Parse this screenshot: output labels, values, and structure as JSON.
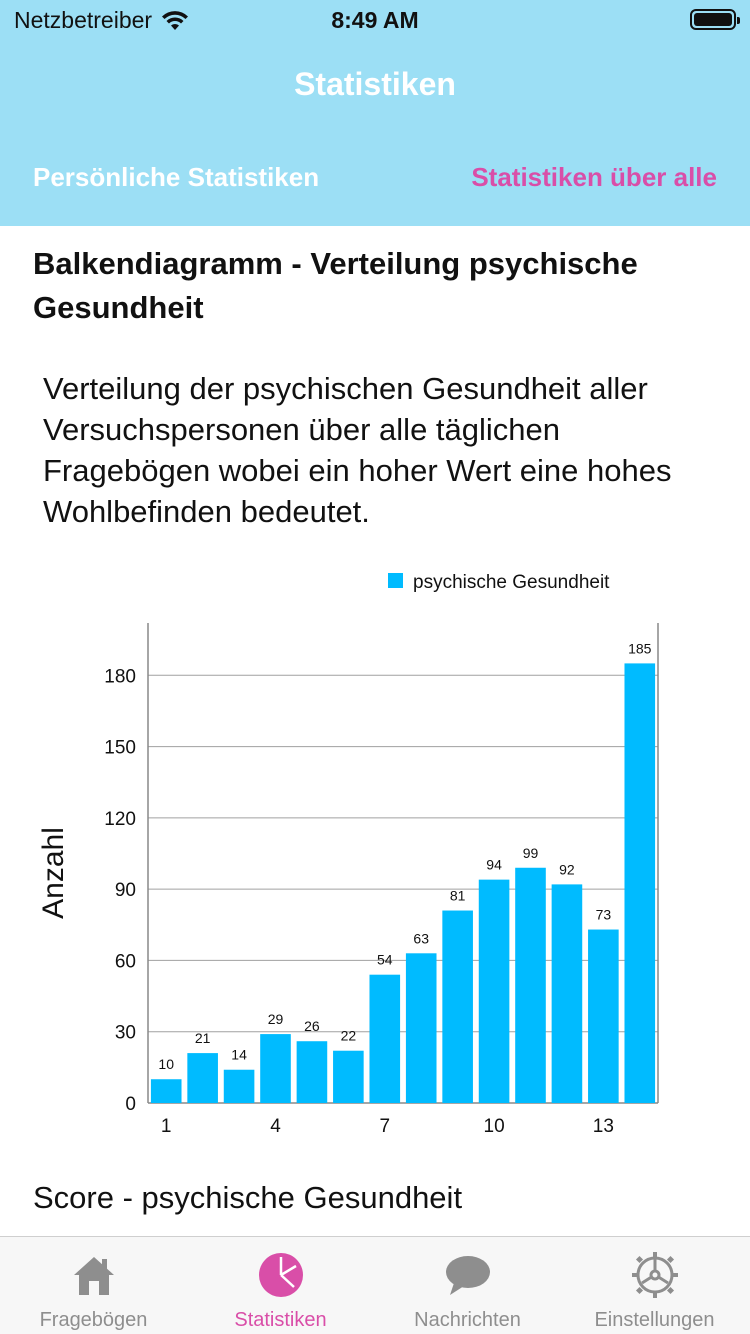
{
  "status": {
    "carrier": "Netzbetreiber",
    "time": "8:49 AM"
  },
  "nav": {
    "title": "Statistiken"
  },
  "tabs": {
    "left": "Persönliche Statistiken",
    "right": "Statistiken über alle"
  },
  "content": {
    "section_title": "Balkendiagramm - Verteilung psychische Gesundheit",
    "description": "Verteilung der psychischen Gesundheit aller Versuchspersonen über alle täglichen Fragebögen wobei ein hoher Wert eine hohes Wohlbefinden bedeutet.",
    "next_title": "Score - psychische Gesundheit"
  },
  "chart_data": {
    "type": "bar",
    "x": [
      1,
      2,
      3,
      4,
      5,
      6,
      7,
      8,
      9,
      10,
      11,
      12,
      13,
      14
    ],
    "x_tick_labels": [
      "1",
      "4",
      "7",
      "10",
      "13"
    ],
    "series": [
      {
        "name": "psychische Gesundheit",
        "values": [
          10,
          21,
          14,
          29,
          26,
          22,
          54,
          63,
          81,
          94,
          99,
          92,
          73,
          185
        ]
      }
    ],
    "ylabel": "Anzahl",
    "xlabel": "",
    "ylim": [
      0,
      202
    ],
    "y_ticks": [
      0,
      30,
      60,
      90,
      120,
      150,
      180
    ],
    "grid": true,
    "legend": "top-right",
    "bar_color": "#00bbff"
  },
  "tabbar": {
    "items": [
      {
        "label": "Fragebögen",
        "icon": "house-icon",
        "active": false
      },
      {
        "label": "Statistiken",
        "icon": "pie-chart-icon",
        "active": true
      },
      {
        "label": "Nachrichten",
        "icon": "speech-bubble-icon",
        "active": false
      },
      {
        "label": "Einstellungen",
        "icon": "gear-icon",
        "active": false
      }
    ],
    "active_color": "#d94ea8",
    "inactive_color": "#8e8e8e"
  }
}
